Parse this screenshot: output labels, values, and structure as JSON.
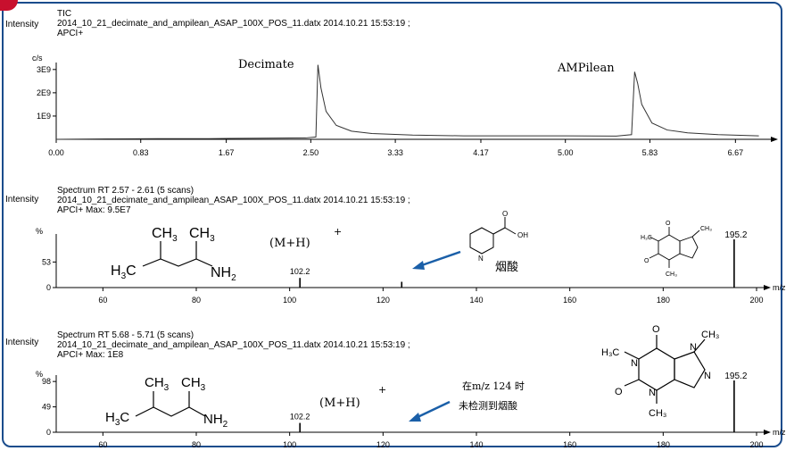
{
  "panel1": {
    "y_axis_title": "Intensity",
    "header": [
      "TIC",
      "2014_10_21_decimate_and_ampilean_ASAP_100X_POS_11.datx 2014.10.21 15:53:19 ;",
      "APCI+"
    ],
    "y_unit": "c/s",
    "y_ticks": [
      "3E9",
      "2E9",
      "1E9"
    ],
    "x_unit_fragment": "",
    "annotations": {
      "decimate": "Decimate",
      "ampilean": "AMPilean"
    }
  },
  "panel2": {
    "y_axis_title": "Intensity",
    "header": [
      "Spectrum RT 2.57 - 2.61 (5 scans)",
      "2014_10_21_decimate_and_ampilean_ASAP_100X_POS_11.datx 2014.10.21 15:53:19 ;",
      "APCI+ Max: 9.5E7"
    ],
    "y_unit": "%",
    "y_ticks": [
      "53",
      "0"
    ],
    "x_unit_fragment": "m/z",
    "annotations": {
      "mh": "(M+H)",
      "plus": "+",
      "nicotinic": "烟酸",
      "struct_main": "H3C CH3 CH3 NH2"
    },
    "peak_labels": [
      "102.2",
      "195.2"
    ]
  },
  "panel3": {
    "y_axis_title": "Intensity",
    "header": [
      "Spectrum RT 5.68 - 5.71 (5 scans)",
      "2014_10_21_decimate_and_ampilean_ASAP_100X_POS_11.datx 2014.10.21 15:53:19 ;",
      "APCI+ Max: 1E8"
    ],
    "y_unit": "%",
    "y_ticks": [
      "98",
      "49",
      "0"
    ],
    "x_unit_fragment": "m/z",
    "annotations": {
      "mh": "(M+H)",
      "plus": "+",
      "note_line1": "在m/z 124 时",
      "note_line2": "未检测到烟酸"
    },
    "peak_labels": [
      "102.2",
      "195.2"
    ]
  },
  "chart_data": [
    {
      "type": "line",
      "title": "TIC",
      "xlabel": "",
      "ylabel": "c/s",
      "xlim": [
        0,
        7.0
      ],
      "ylim": [
        0,
        3300000000.0
      ],
      "x_ticks": [
        "0.00",
        "0.83",
        "1.67",
        "2.50",
        "3.33",
        "4.17",
        "5.00",
        "5.83",
        "6.67"
      ],
      "series": [
        {
          "x": [
            0.0,
            0.5,
            1.0,
            1.5,
            2.0,
            2.45,
            2.55,
            2.57,
            2.6,
            2.65,
            2.75,
            2.9,
            3.1,
            3.5,
            4.0,
            4.5,
            5.0,
            5.5,
            5.65,
            5.68,
            5.71,
            5.75,
            5.85,
            6.0,
            6.2,
            6.5,
            6.9
          ],
          "y": [
            0.0,
            20000000.0,
            30000000.0,
            30000000.0,
            50000000.0,
            60000000.0,
            100000000.0,
            3200000000.0,
            2200000000.0,
            1200000000.0,
            600000000.0,
            350000000.0,
            250000000.0,
            180000000.0,
            150000000.0,
            150000000.0,
            150000000.0,
            140000000.0,
            200000000.0,
            2900000000.0,
            2400000000.0,
            1500000000.0,
            700000000.0,
            400000000.0,
            280000000.0,
            200000000.0,
            150000000.0
          ]
        }
      ]
    },
    {
      "type": "bar",
      "title": "Spectrum RT 2.57 - 2.61 (5 scans)",
      "xlabel": "m/z",
      "ylabel": "%",
      "xlim": [
        50,
        200
      ],
      "ylim": [
        0,
        100
      ],
      "x_ticks": [
        "60",
        "80",
        "100",
        "120",
        "140",
        "160",
        "180",
        "200"
      ],
      "series": [
        {
          "x": [
            102.2,
            124.0,
            195.2
          ],
          "y": [
            20,
            12,
            100
          ]
        }
      ]
    },
    {
      "type": "bar",
      "title": "Spectrum RT 5.68 - 5.71 (5 scans)",
      "xlabel": "m/z",
      "ylabel": "%",
      "xlim": [
        50,
        200
      ],
      "ylim": [
        0,
        100
      ],
      "x_ticks": [
        "60",
        "80",
        "100",
        "120",
        "140",
        "160",
        "180",
        "200"
      ],
      "series": [
        {
          "x": [
            102.2,
            195.2
          ],
          "y": [
            18,
            100
          ]
        }
      ]
    }
  ]
}
